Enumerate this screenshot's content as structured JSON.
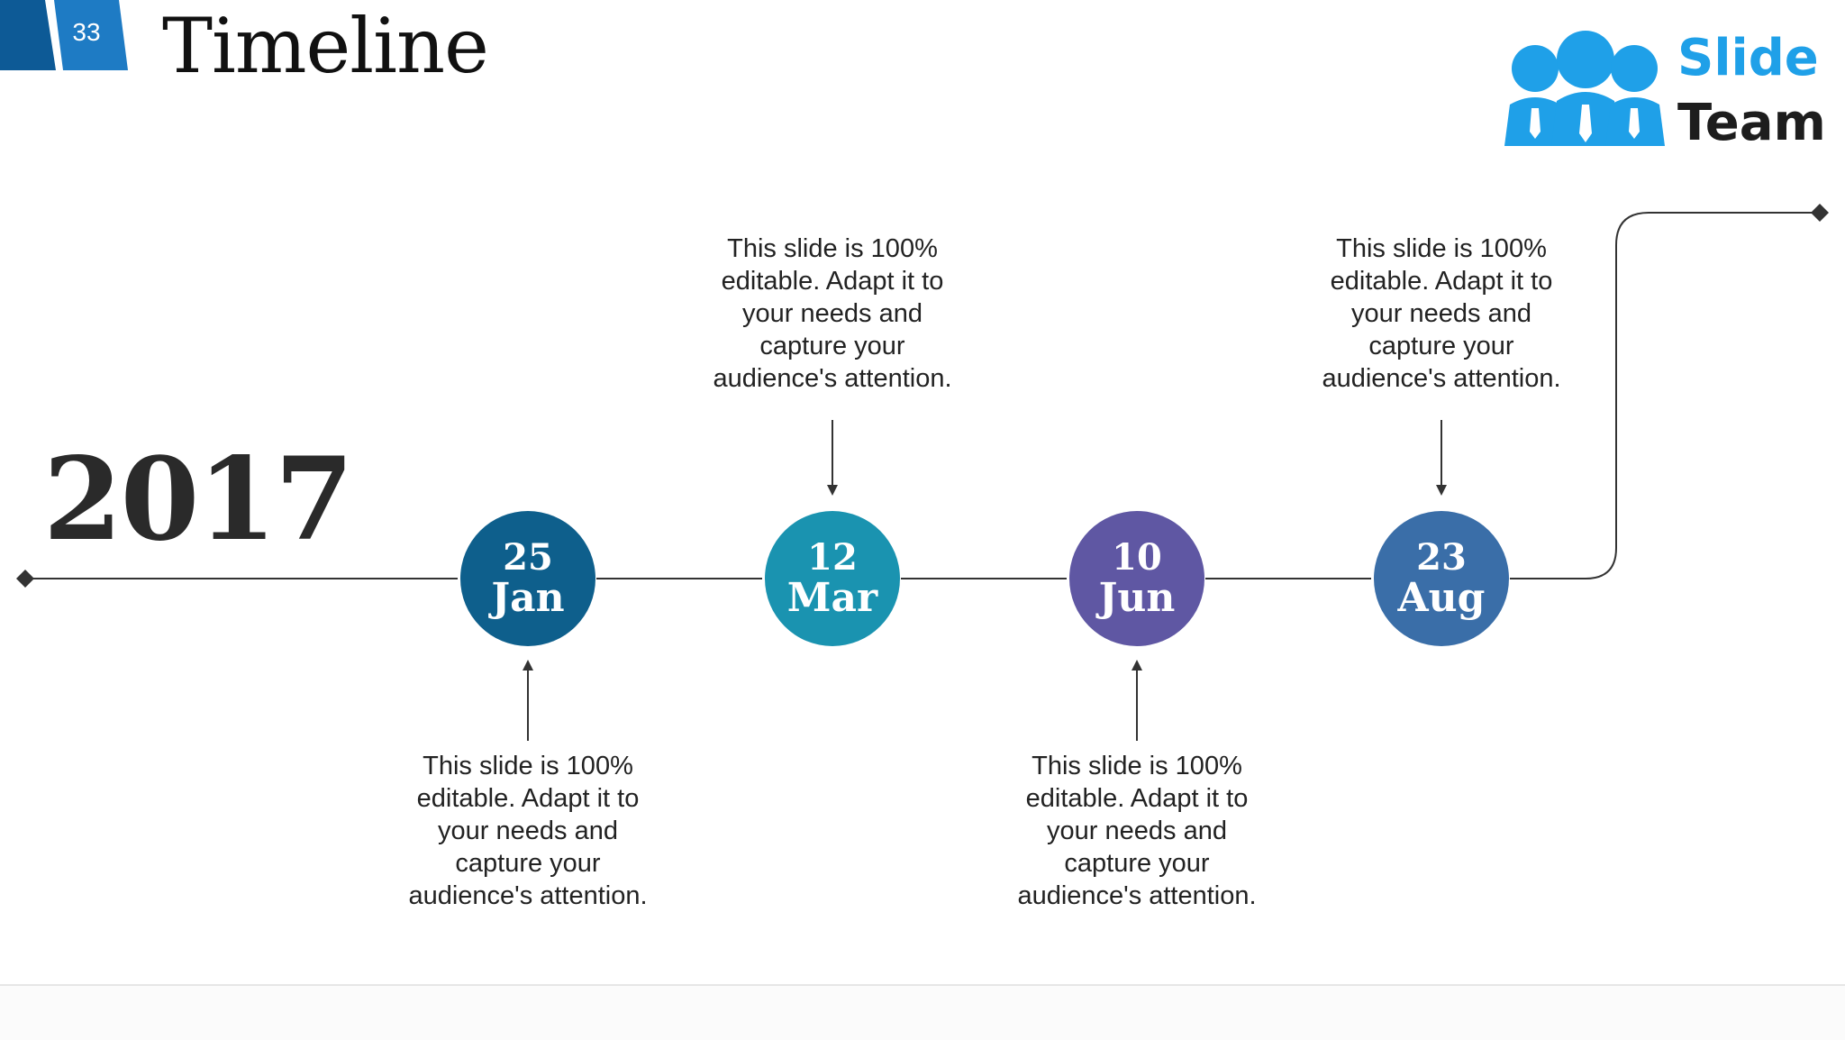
{
  "slide": {
    "number": "33",
    "title": "Timeline",
    "year": "2017"
  },
  "logo": {
    "word1": "Slide",
    "word2": "Team"
  },
  "colors": {
    "accent_blue": "#1fa0e8",
    "tab_dark": "#0d5a96",
    "tab_light": "#1e7bc4"
  },
  "milestones": [
    {
      "day": "25",
      "month": "Jan",
      "color": "#0e5f8c",
      "text": "This slide is 100% editable. Adapt it to your needs and capture your audience's attention.",
      "text_position": "below"
    },
    {
      "day": "12",
      "month": "Mar",
      "color": "#1a93b0",
      "text": "This slide is 100% editable. Adapt it to your needs and capture your audience's attention.",
      "text_position": "above"
    },
    {
      "day": "10",
      "month": "Jun",
      "color": "#5f57a3",
      "text": "This slide is 100% editable. Adapt it to your needs and capture your audience's attention.",
      "text_position": "below"
    },
    {
      "day": "23",
      "month": "Aug",
      "color": "#3a6ea8",
      "text": "This slide is 100% editable. Adapt it to your needs and capture your audience's attention.",
      "text_position": "above"
    }
  ]
}
